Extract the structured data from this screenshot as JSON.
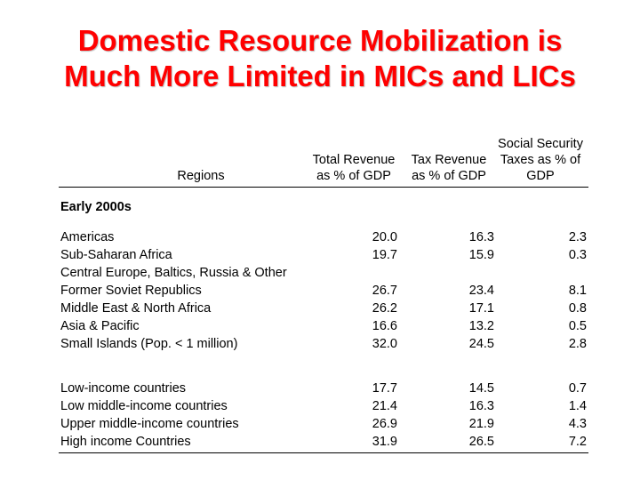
{
  "title": {
    "line1": "Domestic Resource Mobilization is",
    "line2": "Much More Limited in MICs and LICs"
  },
  "table": {
    "headers": {
      "regions": "Regions",
      "total_line1": "Total Revenue",
      "total_line2": "as % of GDP",
      "tax_line1": "Tax Revenue",
      "tax_line2": "as % of GDP",
      "ss_line1": "Social Security",
      "ss_line2": "Taxes as % of",
      "ss_line3": "GDP"
    },
    "section_label": "Early 2000s",
    "region_rows": [
      {
        "name": "Americas",
        "total": "20.0",
        "tax": "16.3",
        "ss": "2.3"
      },
      {
        "name": "Sub-Saharan Africa",
        "total": "19.7",
        "tax": "15.9",
        "ss": "0.3"
      },
      {
        "name_line1": "Central Europe, Baltics, Russia & Other",
        "name_line2": "Former Soviet Republics",
        "total": "26.7",
        "tax": "23.4",
        "ss": "8.1"
      },
      {
        "name": "Middle East & North Africa",
        "total": "26.2",
        "tax": "17.1",
        "ss": "0.8"
      },
      {
        "name": "Asia & Pacific",
        "total": "16.6",
        "tax": "13.2",
        "ss": "0.5"
      },
      {
        "name": "Small Islands (Pop. < 1 million)",
        "total": "32.0",
        "tax": "24.5",
        "ss": "2.8"
      }
    ],
    "income_rows": [
      {
        "name": "Low-income countries",
        "total": "17.7",
        "tax": "14.5",
        "ss": "0.7"
      },
      {
        "name": "Low middle-income countries",
        "total": "21.4",
        "tax": "16.3",
        "ss": "1.4"
      },
      {
        "name": "Upper middle-income countries",
        "total": "26.9",
        "tax": "21.9",
        "ss": "4.3"
      },
      {
        "name": "High income Countries",
        "total": "31.9",
        "tax": "26.5",
        "ss": "7.2"
      }
    ]
  }
}
